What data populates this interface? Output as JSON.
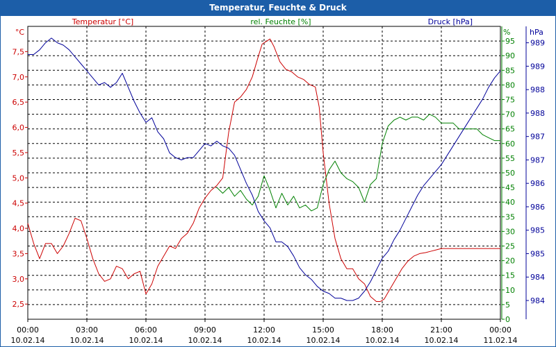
{
  "chart_data": {
    "type": "line",
    "title": "Temperatur, Feuchte & Druck",
    "x_ticks": [
      {
        "time": "00:00",
        "date": "10.02.14"
      },
      {
        "time": "03:00",
        "date": "10.02.14"
      },
      {
        "time": "06:00",
        "date": "10.02.14"
      },
      {
        "time": "09:00",
        "date": "10.02.14"
      },
      {
        "time": "12:00",
        "date": "10.02.14"
      },
      {
        "time": "15:00",
        "date": "10.02.14"
      },
      {
        "time": "18:00",
        "date": "10.02.14"
      },
      {
        "time": "21:00",
        "date": "10.02.14"
      },
      {
        "time": "00:00",
        "date": "11.02.14"
      }
    ],
    "axes": {
      "temp": {
        "label": "Temperatur [°C]",
        "unit": "°C",
        "min": 2.2,
        "max": 8.0,
        "ticks": [
          "7,5",
          "7,0",
          "6,5",
          "6,0",
          "5,5",
          "5,0",
          "4,5",
          "4,0",
          "3,5",
          "3,0",
          "2,5"
        ],
        "tick_values": [
          7.5,
          7.0,
          6.5,
          6.0,
          5.5,
          5.0,
          4.5,
          4.0,
          3.5,
          3.0,
          2.5
        ],
        "color": "#cc0000"
      },
      "hum": {
        "label": "rel. Feuchte [%]",
        "unit": "%",
        "min": 0,
        "max": 100,
        "ticks": [
          "95",
          "90",
          "85",
          "80",
          "75",
          "70",
          "65",
          "60",
          "55",
          "50",
          "45",
          "40",
          "35",
          "30",
          "25",
          "20",
          "15",
          "10",
          "5",
          "0"
        ],
        "tick_values": [
          95,
          90,
          85,
          80,
          75,
          70,
          65,
          60,
          55,
          50,
          45,
          40,
          35,
          30,
          25,
          20,
          15,
          10,
          5,
          0
        ],
        "color": "#008000"
      },
      "press": {
        "label": "Druck [hPa]",
        "unit": "hPa",
        "min": 983.45,
        "max": 989.7,
        "ticks": [
          "989",
          "989",
          "988",
          "988",
          "987",
          "987",
          "986",
          "986",
          "985",
          "985",
          "984",
          "984"
        ],
        "tick_values": [
          989.35,
          988.85,
          988.35,
          987.85,
          987.35,
          986.85,
          986.35,
          985.85,
          985.35,
          984.85,
          984.35,
          983.85
        ],
        "color": "#000099"
      }
    },
    "series": [
      {
        "name": "Temperatur",
        "axis": "temp",
        "color": "#cc0000",
        "x": [
          0,
          0.3,
          0.6,
          0.9,
          1.2,
          1.5,
          1.8,
          2.1,
          2.4,
          2.7,
          3.0,
          3.3,
          3.6,
          3.9,
          4.2,
          4.5,
          4.8,
          5.1,
          5.4,
          5.7,
          6.0,
          6.3,
          6.6,
          6.9,
          7.2,
          7.5,
          7.8,
          8.1,
          8.4,
          8.7,
          9.0,
          9.3,
          9.6,
          9.9,
          10.2,
          10.5,
          10.8,
          11.1,
          11.4,
          11.7,
          11.9,
          12.1,
          12.3,
          12.5,
          12.8,
          13.1,
          13.4,
          13.7,
          14.0,
          14.3,
          14.6,
          14.8,
          15.0,
          15.3,
          15.6,
          15.9,
          16.2,
          16.5,
          16.8,
          17.1,
          17.4,
          17.7,
          17.9,
          18.1,
          18.4,
          18.7,
          19.0,
          19.3,
          19.6,
          19.9,
          20.2,
          20.5,
          20.8,
          21.0,
          21.3,
          21.6,
          21.9,
          22.2,
          22.5,
          22.8,
          23.1,
          23.4,
          23.7,
          24.0
        ],
        "values": [
          4.1,
          3.7,
          3.4,
          3.7,
          3.7,
          3.5,
          3.65,
          3.9,
          4.2,
          4.15,
          3.8,
          3.4,
          3.1,
          2.95,
          3.0,
          3.25,
          3.2,
          3.0,
          3.1,
          3.15,
          2.7,
          2.9,
          3.25,
          3.45,
          3.65,
          3.6,
          3.8,
          3.9,
          4.1,
          4.4,
          4.6,
          4.75,
          4.85,
          5.0,
          5.9,
          6.5,
          6.6,
          6.75,
          7.0,
          7.4,
          7.65,
          7.7,
          7.75,
          7.6,
          7.3,
          7.15,
          7.1,
          7.0,
          6.95,
          6.85,
          6.8,
          6.4,
          5.5,
          4.5,
          3.8,
          3.4,
          3.2,
          3.2,
          3.0,
          2.9,
          2.65,
          2.55,
          2.55,
          2.6,
          2.8,
          3.0,
          3.2,
          3.35,
          3.45,
          3.5,
          3.52,
          3.55,
          3.58,
          3.6,
          3.6,
          3.6,
          3.6,
          3.6,
          3.6,
          3.6,
          3.6,
          3.6,
          3.6,
          3.6
        ]
      },
      {
        "name": "rel. Feuchte",
        "axis": "hum",
        "color": "#008000",
        "x": [
          9.6,
          9.9,
          10.2,
          10.5,
          10.8,
          11.1,
          11.4,
          11.7,
          12.0,
          12.3,
          12.6,
          12.9,
          13.2,
          13.5,
          13.8,
          14.1,
          14.4,
          14.7,
          15.0,
          15.3,
          15.6,
          15.9,
          16.2,
          16.5,
          16.8,
          17.1,
          17.4,
          17.7,
          18.0,
          18.3,
          18.6,
          18.9,
          19.2,
          19.5,
          19.8,
          20.1,
          20.4,
          20.7,
          21.0,
          21.3,
          21.6,
          21.9,
          22.2,
          22.5,
          22.8,
          23.1,
          23.4,
          23.7,
          24.0
        ],
        "values": [
          45,
          43,
          45,
          42,
          44,
          41,
          39,
          42,
          49,
          44,
          38,
          43,
          39,
          42,
          38,
          39,
          37,
          38,
          46,
          51,
          54,
          50,
          48,
          47,
          45,
          40,
          46,
          48,
          60,
          66,
          68,
          69,
          68,
          69,
          69,
          68,
          70,
          69,
          67,
          67,
          67,
          65,
          65,
          65,
          65,
          63,
          62,
          61,
          61
        ]
      },
      {
        "name": "Druck",
        "axis": "press",
        "color": "#000099",
        "x": [
          0,
          0.3,
          0.6,
          0.9,
          1.2,
          1.5,
          1.8,
          2.1,
          2.4,
          2.7,
          3.0,
          3.3,
          3.6,
          3.9,
          4.2,
          4.5,
          4.8,
          5.1,
          5.4,
          5.7,
          6.0,
          6.3,
          6.6,
          6.9,
          7.2,
          7.5,
          7.8,
          8.1,
          8.4,
          8.7,
          9.0,
          9.3,
          9.6,
          9.9,
          10.2,
          10.5,
          10.8,
          11.1,
          11.4,
          11.7,
          12.0,
          12.3,
          12.6,
          12.9,
          13.2,
          13.5,
          13.8,
          14.1,
          14.4,
          14.7,
          15.0,
          15.3,
          15.6,
          15.9,
          16.2,
          16.5,
          16.8,
          17.1,
          17.4,
          17.7,
          18.0,
          18.3,
          18.6,
          18.9,
          19.2,
          19.5,
          19.8,
          20.1,
          20.4,
          20.7,
          21.0,
          21.3,
          21.6,
          21.9,
          22.2,
          22.5,
          22.8,
          23.1,
          23.4,
          23.7,
          24.0
        ],
        "values": [
          989.1,
          989.1,
          989.2,
          989.35,
          989.45,
          989.35,
          989.3,
          989.2,
          989.05,
          988.9,
          988.75,
          988.6,
          988.45,
          988.5,
          988.4,
          988.5,
          988.7,
          988.4,
          988.1,
          987.85,
          987.65,
          987.75,
          987.45,
          987.3,
          987.0,
          986.9,
          986.85,
          986.9,
          986.9,
          987.05,
          987.2,
          987.15,
          987.25,
          987.15,
          987.1,
          986.95,
          986.65,
          986.35,
          986.1,
          985.75,
          985.55,
          985.4,
          985.1,
          985.1,
          985.0,
          984.8,
          984.55,
          984.4,
          984.3,
          984.15,
          984.05,
          984.0,
          983.9,
          983.9,
          983.85,
          983.85,
          983.9,
          984.05,
          984.25,
          984.5,
          984.75,
          984.9,
          985.15,
          985.35,
          985.6,
          985.85,
          986.1,
          986.3,
          986.45,
          986.6,
          986.75,
          986.95,
          987.15,
          987.35,
          987.55,
          987.75,
          987.95,
          988.15,
          988.4,
          988.6,
          988.75
        ]
      }
    ]
  }
}
